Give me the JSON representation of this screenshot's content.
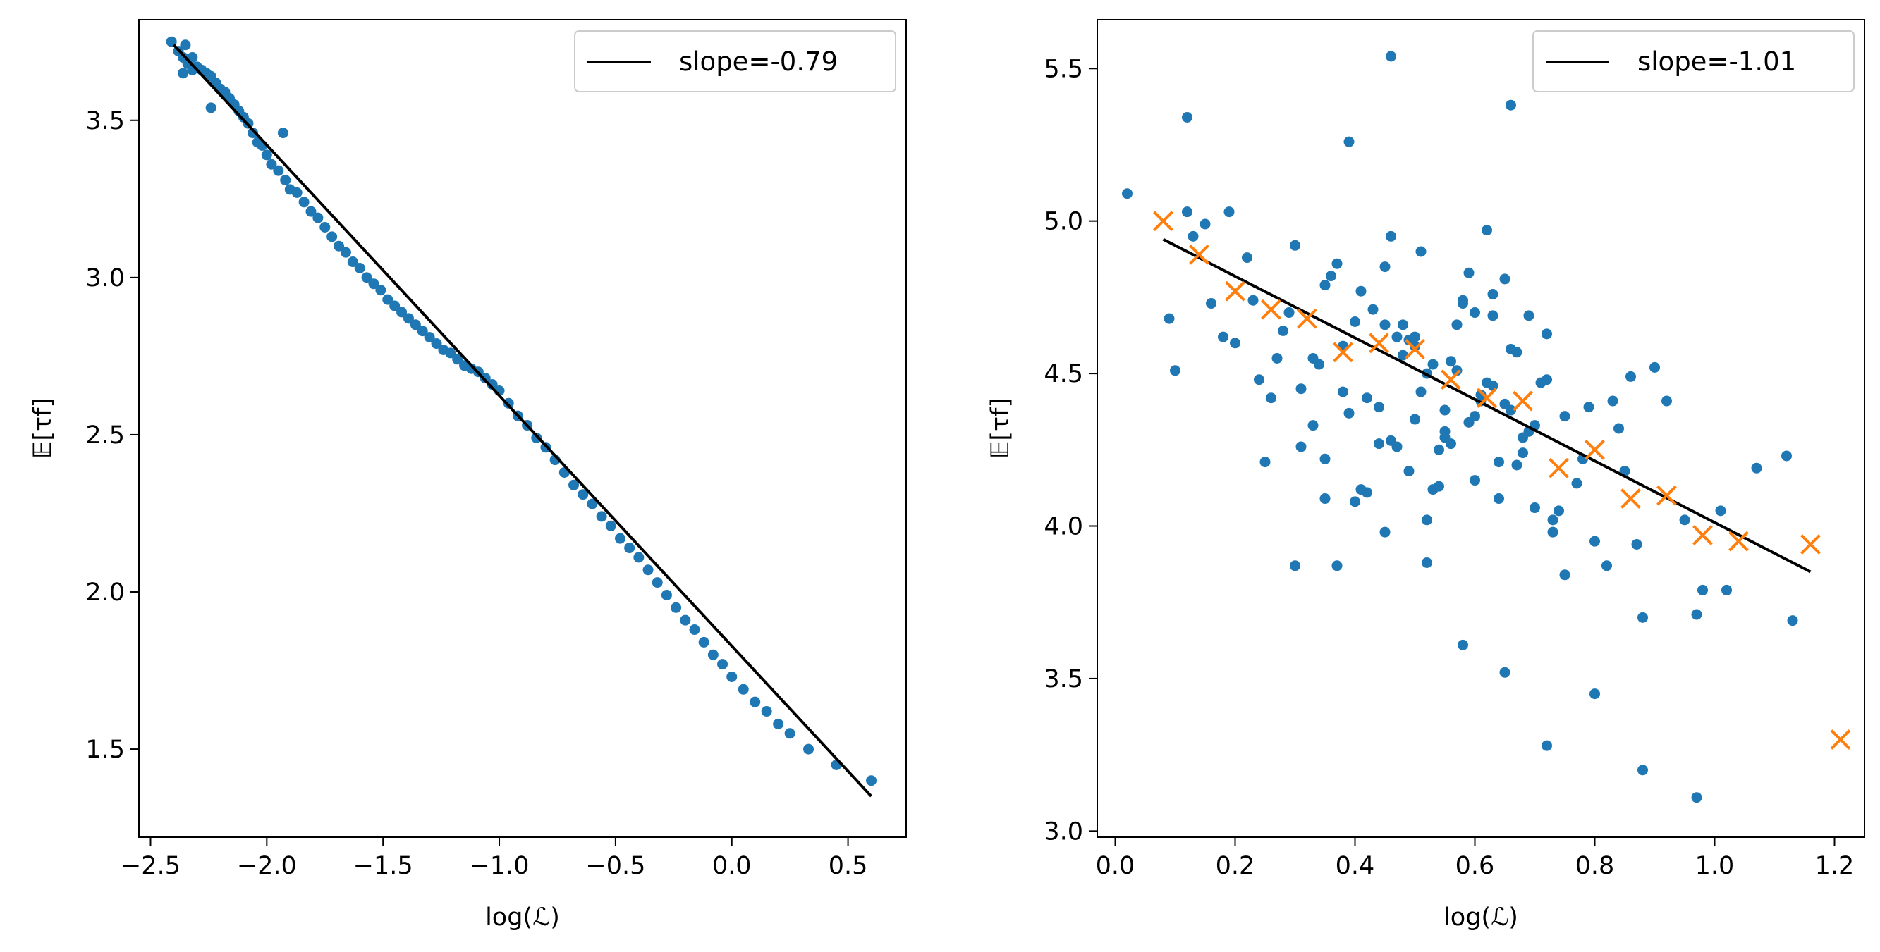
{
  "chart_data": [
    {
      "type": "scatter",
      "xlabel": "log(ℒ)",
      "ylabel": "𝔼[τf]",
      "xlim": [
        -2.55,
        0.75
      ],
      "ylim": [
        1.22,
        3.82
      ],
      "xticks": [
        -2.5,
        -2.0,
        -1.5,
        -1.0,
        -0.5,
        0.0,
        0.5
      ],
      "xtick_labels": [
        "−2.5",
        "−2.0",
        "−1.5",
        "−1.0",
        "−0.5",
        "0.0",
        "0.5"
      ],
      "yticks": [
        1.5,
        2.0,
        2.5,
        3.0,
        3.5
      ],
      "ytick_labels": [
        "1.5",
        "2.0",
        "2.5",
        "3.0",
        "3.5"
      ],
      "fit_line": {
        "label": "slope=-0.79",
        "slope": -0.79,
        "x": [
          -2.4,
          0.6
        ],
        "y": [
          3.74,
          1.35
        ]
      },
      "points": {
        "x": [
          -2.41,
          -2.38,
          -2.36,
          -2.35,
          -2.34,
          -2.32,
          -2.3,
          -2.28,
          -2.26,
          -2.24,
          -2.22,
          -2.2,
          -2.18,
          -2.16,
          -2.14,
          -2.12,
          -2.1,
          -2.08,
          -2.06,
          -2.04,
          -2.02,
          -2.0,
          -1.98,
          -1.95,
          -1.92,
          -1.9,
          -1.87,
          -1.84,
          -1.81,
          -1.78,
          -1.75,
          -1.72,
          -1.69,
          -1.66,
          -1.63,
          -1.6,
          -1.57,
          -1.54,
          -1.51,
          -1.48,
          -1.45,
          -1.42,
          -1.39,
          -1.36,
          -1.33,
          -1.3,
          -1.27,
          -1.24,
          -1.21,
          -1.18,
          -1.15,
          -1.12,
          -1.09,
          -1.06,
          -1.03,
          -1.0,
          -0.96,
          -0.92,
          -0.88,
          -0.84,
          -0.8,
          -0.76,
          -0.72,
          -0.68,
          -0.64,
          -0.6,
          -0.56,
          -0.52,
          -0.48,
          -0.44,
          -0.4,
          -0.36,
          -0.32,
          -0.28,
          -0.24,
          -0.2,
          -0.16,
          -0.12,
          -0.08,
          -0.04,
          0.0,
          0.05,
          0.1,
          0.15,
          0.2,
          0.25,
          0.33,
          0.45,
          0.6,
          -2.24,
          -1.93,
          -2.32,
          -2.36
        ],
        "y": [
          3.75,
          3.72,
          3.7,
          3.74,
          3.68,
          3.7,
          3.67,
          3.66,
          3.65,
          3.64,
          3.62,
          3.6,
          3.59,
          3.57,
          3.55,
          3.53,
          3.51,
          3.49,
          3.46,
          3.43,
          3.42,
          3.39,
          3.36,
          3.34,
          3.31,
          3.28,
          3.27,
          3.24,
          3.21,
          3.19,
          3.16,
          3.13,
          3.1,
          3.08,
          3.05,
          3.03,
          3.0,
          2.98,
          2.96,
          2.93,
          2.91,
          2.89,
          2.87,
          2.85,
          2.83,
          2.81,
          2.79,
          2.77,
          2.76,
          2.74,
          2.72,
          2.71,
          2.7,
          2.68,
          2.66,
          2.64,
          2.6,
          2.56,
          2.53,
          2.49,
          2.46,
          2.42,
          2.38,
          2.34,
          2.31,
          2.28,
          2.24,
          2.21,
          2.17,
          2.14,
          2.11,
          2.07,
          2.03,
          1.99,
          1.95,
          1.91,
          1.88,
          1.84,
          1.8,
          1.77,
          1.73,
          1.69,
          1.65,
          1.62,
          1.58,
          1.55,
          1.5,
          1.45,
          1.4,
          3.54,
          3.46,
          3.66,
          3.65
        ]
      },
      "legend": {
        "label": "slope=-0.79",
        "position": "upper right"
      },
      "colors": {
        "points": "#1f77b4",
        "line": "#000000"
      }
    },
    {
      "type": "scatter",
      "xlabel": "log(ℒ)",
      "ylabel": "𝔼[τf]",
      "xlim": [
        -0.03,
        1.25
      ],
      "ylim": [
        2.98,
        5.66
      ],
      "xticks": [
        0.0,
        0.2,
        0.4,
        0.6,
        0.8,
        1.0,
        1.2
      ],
      "xtick_labels": [
        "0.0",
        "0.2",
        "0.4",
        "0.6",
        "0.8",
        "1.0",
        "1.2"
      ],
      "yticks": [
        3.0,
        3.5,
        4.0,
        4.5,
        5.0,
        5.5
      ],
      "ytick_labels": [
        "3.0",
        "3.5",
        "4.0",
        "4.5",
        "5.0",
        "5.5"
      ],
      "fit_line": {
        "label": "slope=-1.01",
        "slope": -1.01,
        "x": [
          0.08,
          1.16
        ],
        "y": [
          4.94,
          3.85
        ]
      },
      "binned_means": {
        "x": [
          0.08,
          0.14,
          0.2,
          0.26,
          0.32,
          0.38,
          0.44,
          0.5,
          0.56,
          0.62,
          0.68,
          0.74,
          0.8,
          0.86,
          0.92,
          0.98,
          1.04,
          1.16,
          1.21
        ],
        "y": [
          5.0,
          4.89,
          4.77,
          4.71,
          4.68,
          4.57,
          4.6,
          4.58,
          4.48,
          4.42,
          4.41,
          4.19,
          4.25,
          4.09,
          4.1,
          3.97,
          3.95,
          3.94,
          3.3
        ]
      },
      "points": {
        "x": [
          0.02,
          0.12,
          0.09,
          0.1,
          0.13,
          0.16,
          0.18,
          0.22,
          0.25,
          0.27,
          0.3,
          0.33,
          0.35,
          0.38,
          0.4,
          0.42,
          0.45,
          0.47,
          0.5,
          0.52,
          0.55,
          0.58,
          0.6,
          0.62,
          0.65,
          0.68,
          0.7,
          0.72,
          0.75,
          0.78,
          0.8,
          0.83,
          0.85,
          0.88,
          0.9,
          0.95,
          0.98,
          1.02,
          1.07,
          1.12,
          0.15,
          0.2,
          0.24,
          0.29,
          0.34,
          0.37,
          0.41,
          0.44,
          0.48,
          0.51,
          0.54,
          0.57,
          0.61,
          0.64,
          0.66,
          0.69,
          0.73,
          0.77,
          0.82,
          0.86,
          0.28,
          0.31,
          0.36,
          0.39,
          0.43,
          0.46,
          0.49,
          0.53,
          0.56,
          0.59,
          0.63,
          0.67,
          0.71,
          0.74,
          0.79,
          0.84,
          0.87,
          0.92,
          0.97,
          1.01,
          0.35,
          0.38,
          0.42,
          0.45,
          0.5,
          0.53,
          0.56,
          0.6,
          0.63,
          0.66,
          0.47,
          0.49,
          0.52,
          0.55,
          0.58,
          0.61,
          0.64,
          0.67,
          0.7,
          0.73,
          0.4,
          0.44,
          0.48,
          0.51,
          0.54,
          0.57,
          0.6,
          0.63,
          0.68,
          0.72,
          0.33,
          0.37,
          0.41,
          0.46,
          0.5,
          0.55,
          0.59,
          0.62,
          0.65,
          0.69,
          0.3,
          0.26,
          0.23,
          0.19,
          0.46,
          0.66,
          0.39,
          0.12,
          0.88,
          0.97,
          1.13,
          0.8,
          0.72,
          0.65,
          0.58,
          0.52,
          0.35,
          0.31,
          0.45,
          0.75
        ],
        "y": [
          5.09,
          5.34,
          4.68,
          4.51,
          4.95,
          4.73,
          4.62,
          4.88,
          4.21,
          4.55,
          4.92,
          4.33,
          4.79,
          4.44,
          4.67,
          4.11,
          4.85,
          4.26,
          4.59,
          4.02,
          4.38,
          4.74,
          4.15,
          4.47,
          4.81,
          4.29,
          4.06,
          4.63,
          4.36,
          4.22,
          3.95,
          4.41,
          4.18,
          3.7,
          4.52,
          4.02,
          3.79,
          3.79,
          4.19,
          4.23,
          4.99,
          4.6,
          4.48,
          4.7,
          4.53,
          4.86,
          4.77,
          4.39,
          4.56,
          4.9,
          4.25,
          4.66,
          4.43,
          4.09,
          4.58,
          4.31,
          3.98,
          4.14,
          3.87,
          4.49,
          4.64,
          4.45,
          4.82,
          4.37,
          4.71,
          4.28,
          4.61,
          4.12,
          4.54,
          4.34,
          4.76,
          4.2,
          4.47,
          4.05,
          4.39,
          4.32,
          3.94,
          4.41,
          3.71,
          4.05,
          4.22,
          4.59,
          4.42,
          4.66,
          4.35,
          4.53,
          4.27,
          4.7,
          4.46,
          4.38,
          4.62,
          4.18,
          4.5,
          4.29,
          4.73,
          4.41,
          4.21,
          4.57,
          4.33,
          4.02,
          4.08,
          4.27,
          4.66,
          4.44,
          4.13,
          4.51,
          4.36,
          4.69,
          4.24,
          4.48,
          4.55,
          3.87,
          4.12,
          4.95,
          4.62,
          4.31,
          4.83,
          4.97,
          4.4,
          4.69,
          3.87,
          4.42,
          4.74,
          5.03,
          5.54,
          5.38,
          5.26,
          5.03,
          3.2,
          3.11,
          3.69,
          3.45,
          3.28,
          3.52,
          3.61,
          3.88,
          4.09,
          4.26,
          3.98,
          3.84
        ]
      },
      "legend": {
        "label": "slope=-1.01",
        "position": "upper right"
      },
      "colors": {
        "points": "#1f77b4",
        "markers": "#ff7f0e",
        "line": "#000000"
      }
    }
  ]
}
